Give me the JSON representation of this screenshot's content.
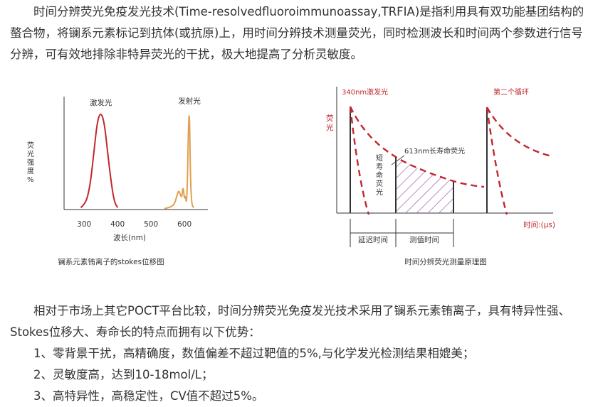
{
  "intro_paragraph": "时间分辨荧光免疫发光技术(Time-resolvedfluoroimmunoassay,TRFIA)是指利用具有双功能基团结构的螯合物，将镧系元素标记到抗体(或抗原)上，用时间分辨技术测量荧光，同时检测波长和时间两个参数进行信号分辨，可有效地排除非特异荧光的干扰，极大地提高了分析灵敏度。",
  "colors": {
    "accent_red": "#c0282d",
    "curve_orange": "#e0a050",
    "hatch_purple": "#a15fb5",
    "axis": "#333333"
  },
  "chart_data": [
    {
      "type": "line",
      "title": "",
      "caption": "镧系元素铕离子的stokes位移图",
      "xlabel": "波长(nm)",
      "ylabel": "荧光强度%",
      "x_ticks": [
        "300",
        "400",
        "500",
        "600"
      ],
      "xlim": [
        240,
        670
      ],
      "ylim": [
        0,
        100
      ],
      "series": [
        {
          "name": "激发光",
          "color": "#c0282d",
          "x": [
            290,
            300,
            310,
            320,
            330,
            340,
            350,
            360,
            370,
            380,
            390,
            400
          ],
          "y": [
            2,
            5,
            12,
            30,
            62,
            92,
            100,
            90,
            60,
            30,
            8,
            2
          ]
        },
        {
          "name": "发射光",
          "color": "#e0a050",
          "x": [
            540,
            555,
            570,
            578,
            583,
            588,
            592,
            596,
            600,
            603,
            606,
            609,
            612,
            615,
            618,
            622,
            628
          ],
          "y": [
            1,
            2,
            5,
            15,
            20,
            15,
            12,
            25,
            10,
            15,
            5,
            30,
            88,
            102,
            30,
            4,
            2
          ]
        }
      ]
    },
    {
      "type": "line",
      "title": "",
      "caption": "时间分辨荧光测量原理图",
      "xlabel": "时间:(μs)",
      "ylabel": "荧光",
      "annotations": [
        "340nm激发光",
        "第二个循环",
        "613nm长寿命荧光",
        "短寿命荧光"
      ],
      "intervals": [
        "延迟时间",
        "测值时间"
      ],
      "series": [
        {
          "name": "短寿命荧光"
        },
        {
          "name": "613nm长寿命荧光"
        }
      ]
    }
  ],
  "comparison_paragraph": "相对于市场上其它POCT平台比较，时间分辨荧光免疫发光技术采用了镧系元素铕离子，具有特异性强、Stokes位移大、寿命长的特点而拥有以下优势：",
  "advantages": [
    "1、零背景干扰，高精确度，数值偏差不超过靶值的5%,与化学发光检测结果相媲美；",
    "2、灵敏度高，达到10-18mol/L；",
    "3、高特异性，高稳定性，CV值不超过5%。"
  ]
}
